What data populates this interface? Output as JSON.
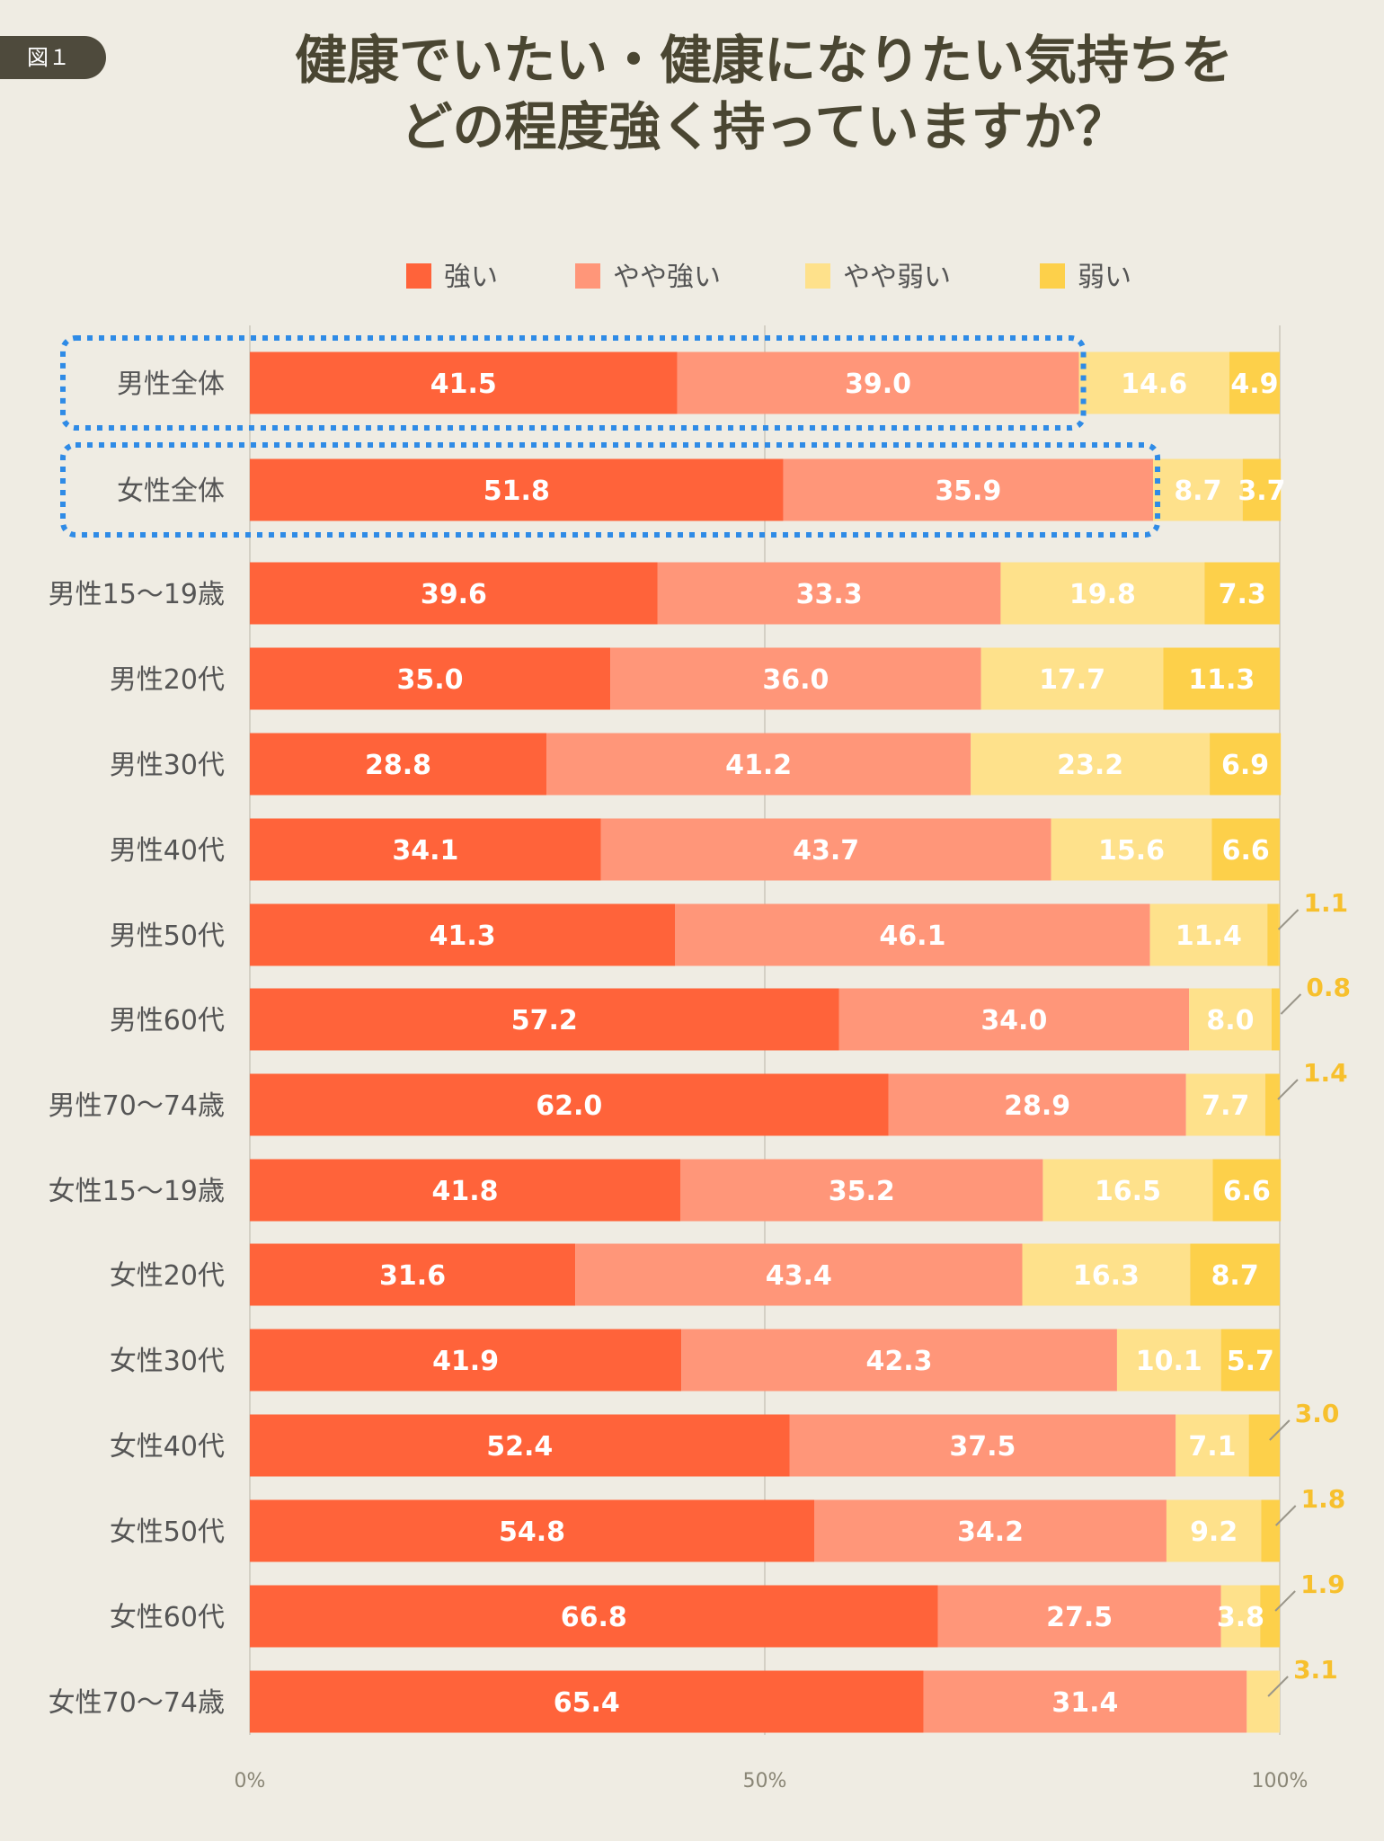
{
  "figure_label": "図１",
  "title_line1": "健康でいたい・健康になりたい気持ちを",
  "title_line2": "どの程度強く持っていますか？",
  "chart_data": {
    "type": "bar",
    "orientation": "horizontal",
    "stacked": true,
    "xlim": [
      0,
      100
    ],
    "x_ticks": [
      "0%",
      "50%",
      "100%"
    ],
    "grid": true,
    "legend_position": "top",
    "categories": [
      "男性全体",
      "女性全体",
      "男性15〜19歳",
      "男性20代",
      "男性30代",
      "男性40代",
      "男性50代",
      "男性60代",
      "男性70〜74歳",
      "女性15〜19歳",
      "女性20代",
      "女性30代",
      "女性40代",
      "女性50代",
      "女性60代",
      "女性70〜74歳"
    ],
    "highlighted_categories": [
      "男性全体",
      "女性全体"
    ],
    "series": [
      {
        "name": "強い",
        "color": "#ff633a",
        "values": [
          41.5,
          51.8,
          39.6,
          35.0,
          28.8,
          34.1,
          41.3,
          57.2,
          62.0,
          41.8,
          31.6,
          41.9,
          52.4,
          54.8,
          66.8,
          65.4
        ]
      },
      {
        "name": "やや強い",
        "color": "#ff9679",
        "values": [
          39.0,
          35.9,
          33.3,
          36.0,
          41.2,
          43.7,
          46.1,
          34.0,
          28.9,
          35.2,
          43.4,
          42.3,
          37.5,
          34.2,
          27.5,
          31.4
        ]
      },
      {
        "name": "やや弱い",
        "color": "#fee18b",
        "values": [
          14.6,
          8.7,
          19.8,
          17.7,
          23.2,
          15.6,
          11.4,
          8.0,
          7.7,
          16.5,
          16.3,
          10.1,
          7.1,
          9.2,
          3.8,
          3.1
        ]
      },
      {
        "name": "弱い",
        "color": "#fdd04a",
        "values": [
          4.9,
          3.7,
          7.3,
          11.3,
          6.9,
          6.6,
          1.1,
          0.8,
          1.4,
          6.6,
          8.7,
          5.7,
          3.0,
          1.8,
          1.9,
          null
        ]
      }
    ],
    "value_labels": [
      [
        "41.5",
        "39.0",
        "14.6",
        "4.9"
      ],
      [
        "51.8",
        "35.9",
        "8.7",
        "3.7"
      ],
      [
        "39.6",
        "33.3",
        "19.8",
        "7.3"
      ],
      [
        "35.0",
        "36.0",
        "17.7",
        "11.3"
      ],
      [
        "28.8",
        "41.2",
        "23.2",
        "6.9"
      ],
      [
        "34.1",
        "43.7",
        "15.6",
        "6.6"
      ],
      [
        "41.3",
        "46.1",
        "11.4",
        "1.1"
      ],
      [
        "57.2",
        "34.0",
        "8.0",
        "0.8"
      ],
      [
        "62.0",
        "28.9",
        "7.7",
        "1.4"
      ],
      [
        "41.8",
        "35.2",
        "16.5",
        "6.6"
      ],
      [
        "31.6",
        "43.4",
        "16.3",
        "8.7"
      ],
      [
        "41.9",
        "42.3",
        "10.1",
        "5.7"
      ],
      [
        "52.4",
        "37.5",
        "7.1",
        "3.0"
      ],
      [
        "54.8",
        "34.2",
        "9.2",
        "1.8"
      ],
      [
        "66.8",
        "27.5",
        "3.8",
        "1.9"
      ],
      [
        "65.4",
        "31.4",
        "3.1",
        ""
      ]
    ],
    "outside_label_color": "#f7c02d",
    "highlight_color": "#2f8be6"
  }
}
